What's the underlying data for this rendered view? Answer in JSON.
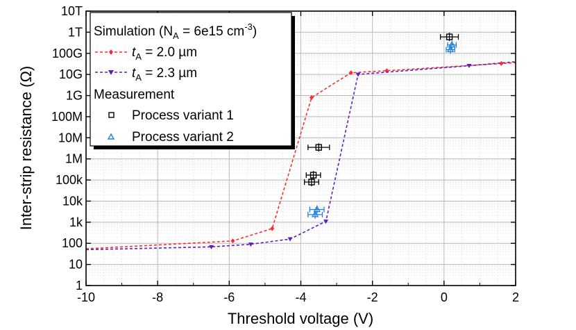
{
  "chart_data": {
    "type": "scatter",
    "xlabel": "Threshold voltage (V)",
    "ylabel": "Inter-strip resistance (Ω)",
    "xlim": [
      -10,
      2
    ],
    "ylim_exponent": [
      0,
      13
    ],
    "y_scale": "log",
    "x_ticks": [
      -10,
      -8,
      -6,
      -4,
      -2,
      0,
      2
    ],
    "x_tick_labels": [
      "-10",
      "-8",
      "-6",
      "-4",
      "-2",
      "0",
      "2"
    ],
    "y_ticks_exponent": [
      0,
      1,
      2,
      3,
      4,
      5,
      6,
      7,
      8,
      9,
      10,
      11,
      12,
      13
    ],
    "y_tick_labels": [
      "1",
      "10",
      "100",
      "1k",
      "10k",
      "100k",
      "1M",
      "10M",
      "100M",
      "1G",
      "10G",
      "100G",
      "1T",
      "10T"
    ],
    "grid": true,
    "legend": {
      "placement": "top-left",
      "sim_title": "Simulation (N",
      "sim_title_sub": "A",
      "sim_title_mid": " = 6e15 cm",
      "sim_title_sup": "-3",
      "sim_title_end": ")",
      "measurement_title": "Measurement"
    },
    "series": [
      {
        "name_prefix": "t",
        "name_sub": "A",
        "name_suffix": " = 2.0 µm",
        "kind": "line",
        "color": "#ff2a2a",
        "marker": "diamond",
        "points": [
          {
            "x": -10,
            "y": 55
          },
          {
            "x": -5.9,
            "y": 130
          },
          {
            "x": -4.8,
            "y": 500
          },
          {
            "x": -3.7,
            "y": 800000000
          },
          {
            "x": -2.6,
            "y": 12000000000
          },
          {
            "x": -1.6,
            "y": 15000000000
          },
          {
            "x": 1.6,
            "y": 33000000000
          },
          {
            "x": 2,
            "y": 36000000000
          }
        ]
      },
      {
        "name_prefix": "t",
        "name_sub": "A",
        "name_suffix": " = 2.3 µm",
        "kind": "line",
        "color": "#5a1fbf",
        "marker": "triangle-down",
        "points": [
          {
            "x": -10,
            "y": 50
          },
          {
            "x": -6.5,
            "y": 68
          },
          {
            "x": -5.4,
            "y": 90
          },
          {
            "x": -4.3,
            "y": 160
          },
          {
            "x": -3.3,
            "y": 1100
          },
          {
            "x": -2.4,
            "y": 10000000000
          },
          {
            "x": 0.7,
            "y": 26000000000
          },
          {
            "x": 2,
            "y": 40000000000
          }
        ]
      },
      {
        "name": "Process variant 1",
        "kind": "errorbar",
        "color": "#000000",
        "marker": "square",
        "points": [
          {
            "x": 0.15,
            "y": 600000000000,
            "xerr": 0.25
          },
          {
            "x": -3.5,
            "y": 3500000,
            "xerr": 0.3
          },
          {
            "x": -3.65,
            "y": 170000,
            "xerr": 0.2
          },
          {
            "x": -3.7,
            "y": 80000,
            "xerr": 0.2
          }
        ]
      },
      {
        "name": "Process variant 2",
        "kind": "errorbar",
        "color": "#1e7fe0",
        "marker": "triangle-up",
        "points": [
          {
            "x": 0.22,
            "y": 250000000000,
            "xerr": 0.12
          },
          {
            "x": 0.18,
            "y": 150000000000,
            "xerr": 0.12
          },
          {
            "x": -3.55,
            "y": 4000,
            "xerr": 0.2
          },
          {
            "x": -3.6,
            "y": 2300,
            "xerr": 0.2
          }
        ]
      }
    ]
  }
}
